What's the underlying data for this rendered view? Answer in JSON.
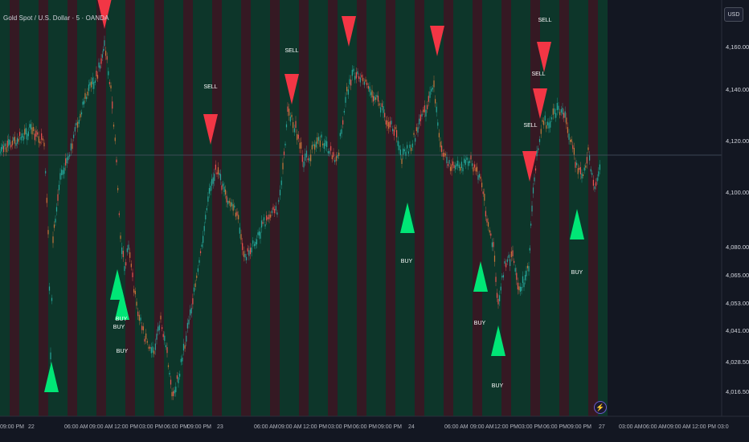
{
  "header": {
    "symbol_title": "Gold Spot / U.S. Dollar · 5 · OANDA",
    "currency_button": "USD"
  },
  "price_axis": {
    "labels": [
      {
        "text": "4,160.000"
      },
      {
        "text": "4,140.000"
      },
      {
        "text": "4,120.000"
      },
      {
        "text": "4,100.000"
      },
      {
        "text": "4,080.000"
      },
      {
        "text": "4,065.000"
      },
      {
        "text": "4,053.000"
      },
      {
        "text": "4,041.000"
      },
      {
        "text": "4,028.500"
      },
      {
        "text": "4,016.500"
      }
    ]
  },
  "time_axis": {
    "labels": [
      "09:00 PM",
      "22",
      "06:00 AM",
      "09:00 AM",
      "12:00 PM",
      "03:00 PM",
      "06:00 PM",
      "09:00 PM",
      "23",
      "06:00 AM",
      "09:00 AM",
      "12:00 PM",
      "03:00 PM",
      "06:00 PM",
      "09:00 PM",
      "24",
      "06:00 AM",
      "09:00 AM",
      "12:00 PM",
      "03:00 PM",
      "06:00 PM",
      "09:00 PM",
      "27",
      "03:00 AM",
      "06:00 AM",
      "09:00 AM",
      "12:00 PM",
      "03:0"
    ]
  },
  "signals": {
    "sell_label": "SELL",
    "buy_label": "BUY",
    "labels": [
      {
        "text": "SELL"
      },
      {
        "text": "SELL"
      },
      {
        "text": "SELL"
      },
      {
        "text": "SELL"
      },
      {
        "text": "SELL"
      },
      {
        "text": "BUY"
      },
      {
        "text": "BUY"
      },
      {
        "text": "BUY"
      },
      {
        "text": "BUY"
      },
      {
        "text": "BUY"
      },
      {
        "text": "BUY"
      },
      {
        "text": "BUY"
      }
    ]
  },
  "colors": {
    "background": "#131722",
    "up_candle": "#26a69a",
    "down_candle": "#ef5350",
    "wick_orange": "#c9763a",
    "buy_triangle": "#00e676",
    "sell_triangle": "#f23645",
    "band_green": "#0d3a2b",
    "band_red": "#3a1a24",
    "current_price_line": "#4a5466"
  },
  "icons": {
    "lightning": "lightning-icon"
  }
}
